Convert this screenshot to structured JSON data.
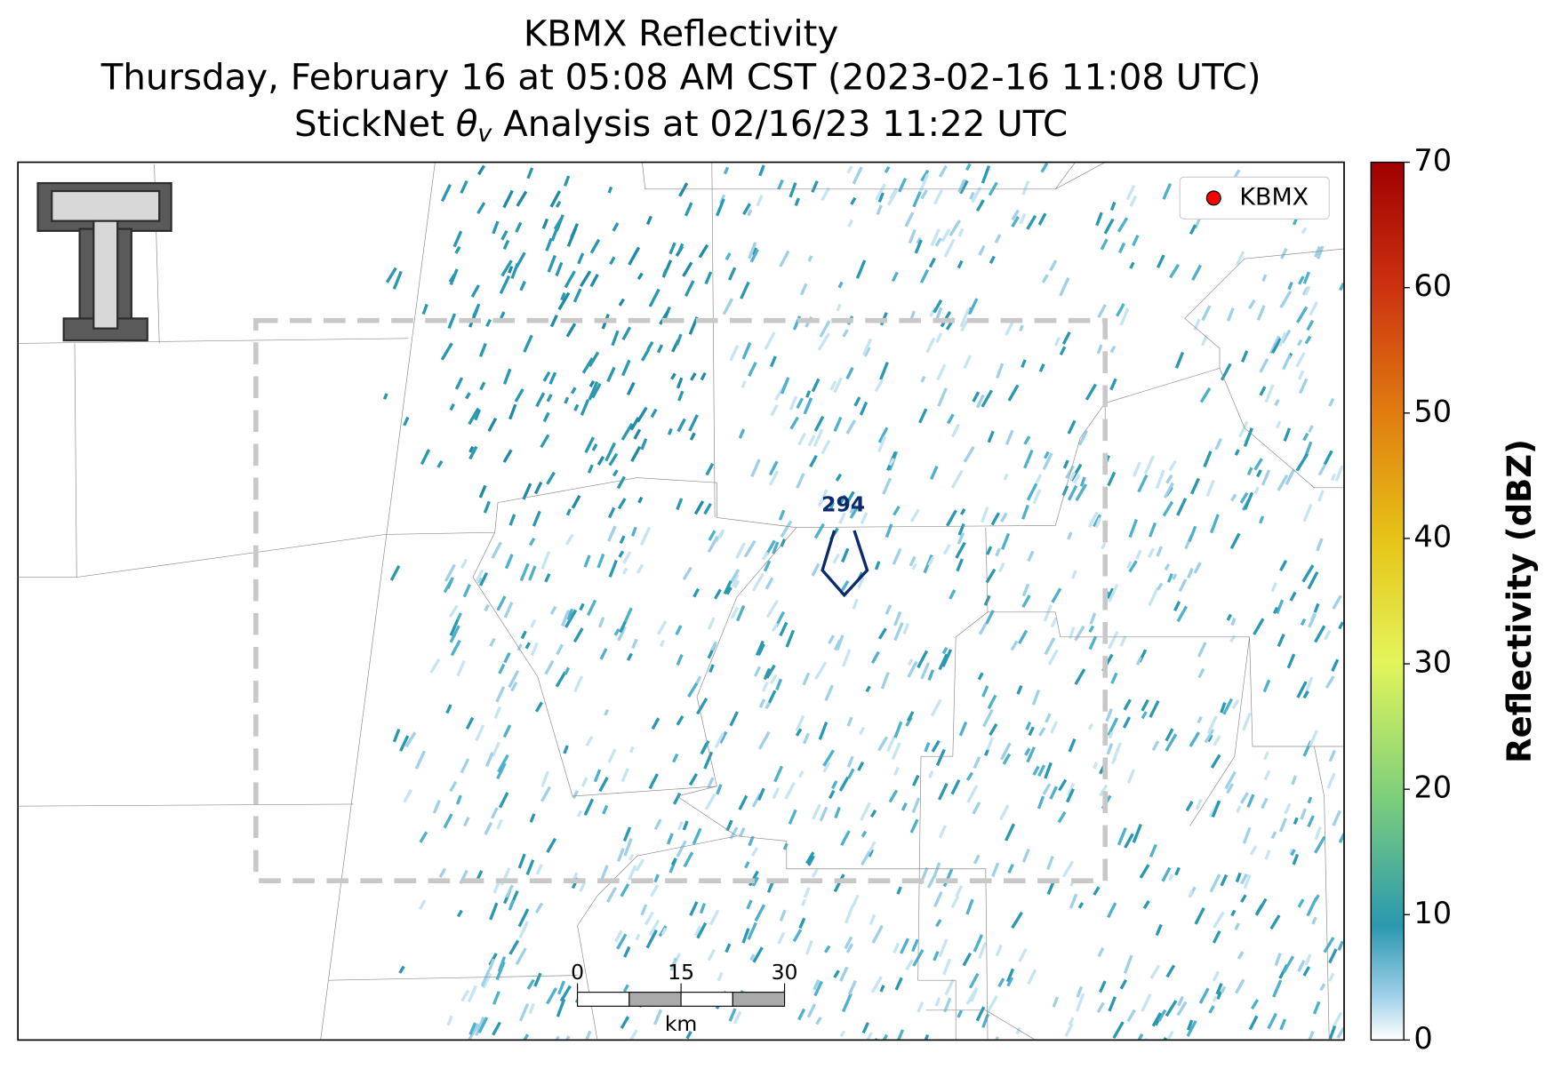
{
  "header": {
    "title": "KBMX Reflectivity",
    "subtitle": "Thursday, February 16 at 05:08 AM CST (2023-02-16 11:08 UTC)",
    "analysis": {
      "prefix": "StickNet ",
      "symbol": "θ",
      "subscript": "v",
      "suffix": " Analysis at 02/16/23 11:22 UTC"
    }
  },
  "legend": {
    "label": "KBMX",
    "color": "#ff0000"
  },
  "station": {
    "value": 294,
    "color": "#0b2a6e"
  },
  "colorbar": {
    "label": "Reflectivity (dBZ)",
    "lim": [
      0,
      70
    ],
    "ticks": [
      0,
      10,
      20,
      30,
      40,
      50,
      60,
      70
    ]
  },
  "scale_bar": {
    "ticks": [
      0,
      15,
      30
    ],
    "unit": "km"
  }
}
